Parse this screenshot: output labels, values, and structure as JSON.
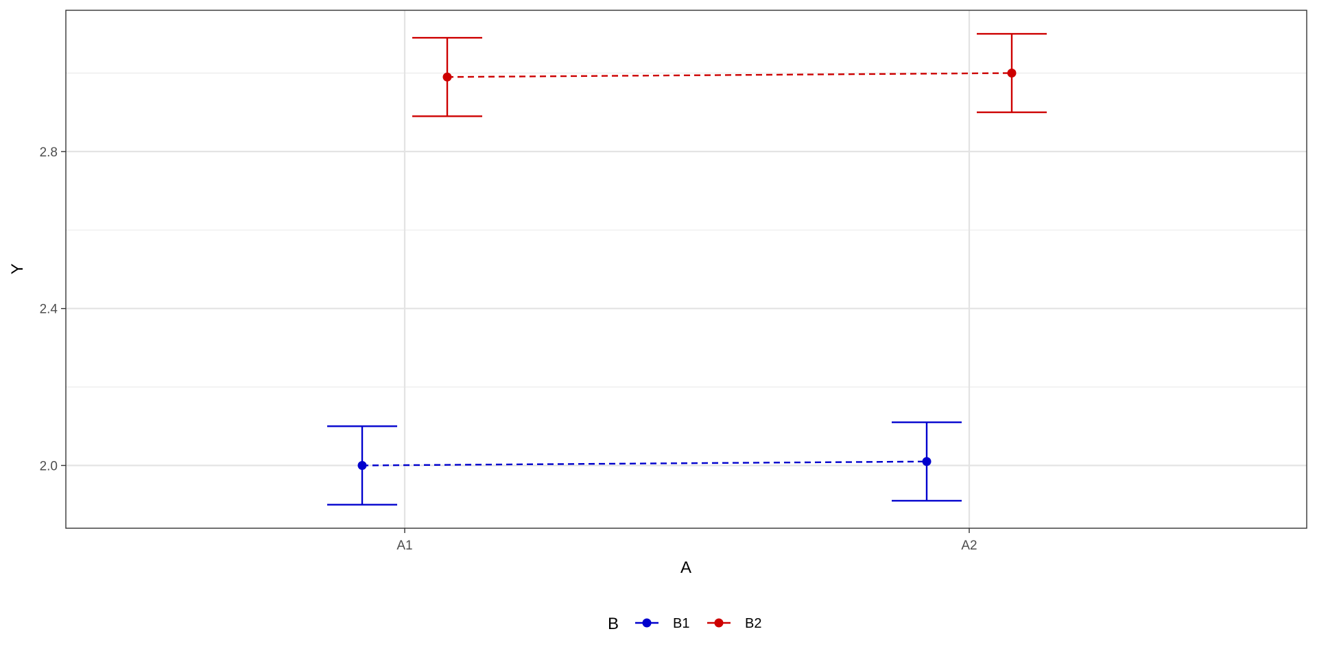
{
  "chart_data": {
    "type": "line",
    "categories": [
      "A1",
      "A2"
    ],
    "xlabel": "A",
    "ylabel": "Y",
    "ylim": [
      1.84,
      3.16
    ],
    "yticks": [
      2.0,
      2.4,
      2.8
    ],
    "ytick_labels": [
      "2.0",
      "2.4",
      "2.8"
    ],
    "grid": true,
    "line_style": "dashed",
    "error_bars": true,
    "legend": {
      "title": "B",
      "position": "bottom"
    },
    "series": [
      {
        "name": "B1",
        "color": "#0000CD",
        "values": [
          2.0,
          2.01
        ],
        "lower": [
          1.9,
          1.91
        ],
        "upper": [
          2.1,
          2.11
        ]
      },
      {
        "name": "B2",
        "color": "#CD0000",
        "values": [
          2.99,
          3.0
        ],
        "lower": [
          2.89,
          2.9
        ],
        "upper": [
          3.09,
          3.1
        ]
      }
    ]
  }
}
